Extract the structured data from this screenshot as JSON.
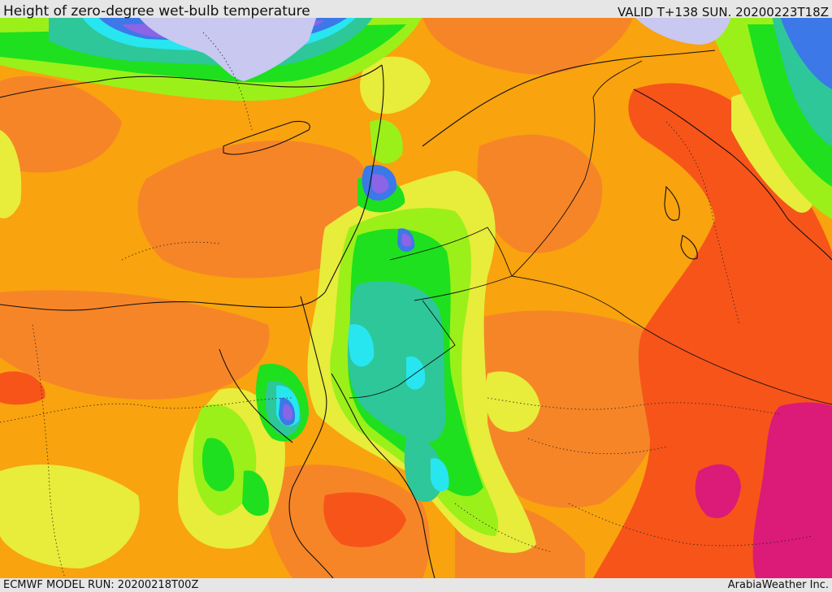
{
  "header": {
    "title": "Height of zero-degree wet-bulb temperature",
    "valid": "VALID T+138 SUN. 20200223T18Z"
  },
  "footer": {
    "model_run": "ECMWF MODEL RUN: 20200218T00Z",
    "credit": "ArabiaWeather Inc."
  },
  "map": {
    "region": "Eastern Mediterranean, Levant, Egypt and Arabian Peninsula",
    "colors": {
      "base": "#f9a30e",
      "orange": "#f68528",
      "red_orange": "#f7541a",
      "magenta": "#dc1a78",
      "yellow": "#e8ec3a",
      "yellow_green": "#9bf01a",
      "green": "#1ee01e",
      "teal": "#2ec79a",
      "cyan": "#28e6f0",
      "blue": "#3c78e8",
      "purple": "#8c64e6",
      "lavender": "#c8c8f0"
    }
  }
}
